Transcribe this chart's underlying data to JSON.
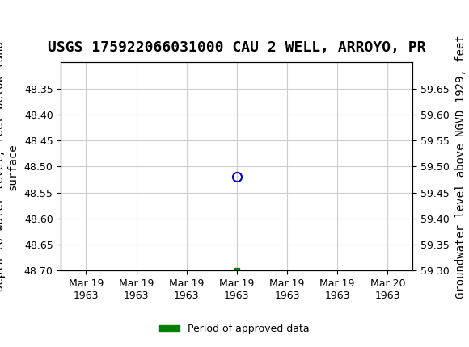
{
  "title": "USGS 175922066031000 CAU 2 WELL, ARROYO, PR",
  "ylabel_left": "Depth to water level, feet below land\nsurface",
  "ylabel_right": "Groundwater level above NGVD 1929, feet",
  "ylim_left": [
    48.7,
    48.3
  ],
  "ylim_right": [
    59.3,
    59.7
  ],
  "yticks_left": [
    48.35,
    48.4,
    48.45,
    48.5,
    48.55,
    48.6,
    48.65,
    48.7
  ],
  "yticks_right": [
    59.65,
    59.6,
    59.55,
    59.5,
    59.45,
    59.4,
    59.35,
    59.3
  ],
  "xlim": [
    0,
    6
  ],
  "xtick_labels": [
    "Mar 19\n1963",
    "Mar 19\n1963",
    "Mar 19\n1963",
    "Mar 19\n1963",
    "Mar 19\n1963",
    "Mar 19\n1963",
    "Mar 20\n1963"
  ],
  "xtick_positions": [
    0,
    1,
    2,
    3,
    4,
    5,
    6
  ],
  "data_point_x": 3,
  "data_point_y": 48.52,
  "data_point_color": "#0000cc",
  "approved_x": 3,
  "approved_y": 48.7,
  "approved_color": "#008000",
  "header_color": "#1a6b3a",
  "background_color": "#ffffff",
  "plot_bg_color": "#ffffff",
  "grid_color": "#cccccc",
  "legend_label": "Period of approved data",
  "legend_color": "#008000",
  "title_fontsize": 13,
  "tick_fontsize": 9,
  "label_fontsize": 10
}
